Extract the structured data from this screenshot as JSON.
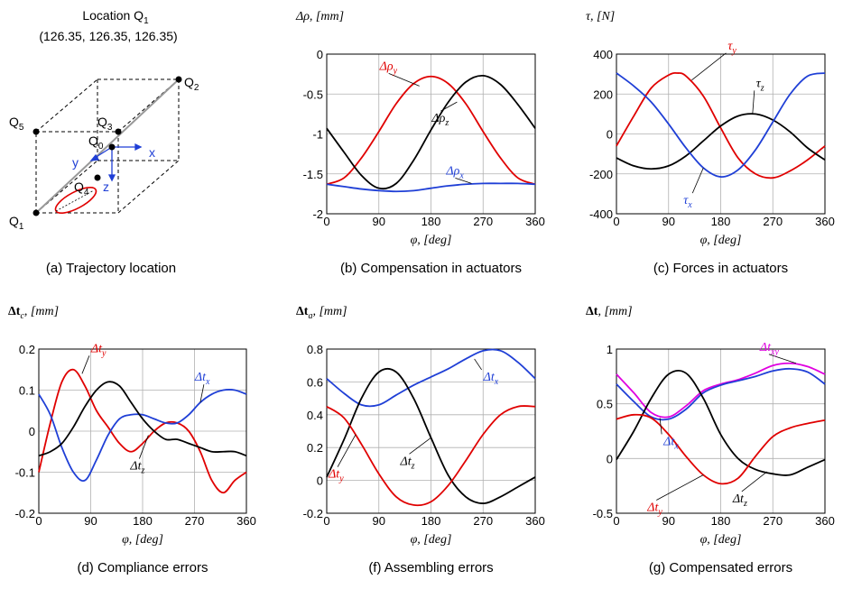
{
  "panel_a": {
    "title_line1": "Location Q",
    "title_sub": "1",
    "title_line2": "(126.35, 126.35, 126.35)",
    "caption": "(a) Trajectory location",
    "labels": {
      "Q1": {
        "t": "Q",
        "s": "1"
      },
      "Q2": {
        "t": "Q",
        "s": "2"
      },
      "Q3": {
        "t": "Q",
        "s": "3"
      },
      "Q4": {
        "t": "Q",
        "s": "4"
      },
      "Q5": {
        "t": "Q",
        "s": "5"
      },
      "Q0": {
        "t": "Q",
        "s": "0"
      }
    },
    "axes": {
      "x": "x",
      "y": "y",
      "z": "z"
    },
    "colors": {
      "axes": "#1f3fd6",
      "trajectory": "#e00000",
      "diagonal": "#999999"
    }
  },
  "chart_data": [
    {
      "id": "b",
      "type": "line",
      "caption": "(b) Compensation in actuators",
      "ylabel": "Δρ, [mm]",
      "xlabel": "φ, [deg]",
      "xlim": [
        0,
        360
      ],
      "ylim": [
        -2,
        0
      ],
      "xticks": [
        0,
        90,
        180,
        270,
        360
      ],
      "yticks": [
        -2,
        -1.5,
        -1,
        -0.5,
        0
      ],
      "ytick_labels": [
        "-2",
        "-1.5",
        "-1",
        "-0.5",
        "0"
      ],
      "grid": true,
      "series": [
        {
          "name": "Δρy",
          "color": "#e00000",
          "x": [
            0,
            30,
            60,
            90,
            120,
            150,
            180,
            210,
            240,
            270,
            300,
            330,
            360
          ],
          "y": [
            -1.63,
            -1.55,
            -1.3,
            -0.97,
            -0.62,
            -0.37,
            -0.28,
            -0.37,
            -0.62,
            -0.97,
            -1.3,
            -1.55,
            -1.63
          ]
        },
        {
          "name": "Δρz",
          "color": "#000000",
          "x": [
            0,
            30,
            60,
            90,
            120,
            150,
            180,
            210,
            240,
            270,
            300,
            330,
            360
          ],
          "y": [
            -0.93,
            -1.23,
            -1.52,
            -1.68,
            -1.62,
            -1.33,
            -0.95,
            -0.6,
            -0.35,
            -0.27,
            -0.38,
            -0.63,
            -0.93
          ]
        },
        {
          "name": "Δρx",
          "color": "#1f3fd6",
          "x": [
            0,
            30,
            60,
            90,
            120,
            150,
            180,
            210,
            240,
            270,
            300,
            330,
            360
          ],
          "y": [
            -1.63,
            -1.66,
            -1.69,
            -1.71,
            -1.72,
            -1.71,
            -1.68,
            -1.65,
            -1.63,
            -1.62,
            -1.62,
            -1.62,
            -1.63
          ]
        }
      ],
      "annotations": [
        {
          "series": 0,
          "base": "Δρ",
          "sub": "y"
        },
        {
          "series": 1,
          "base": "Δρ",
          "sub": "z"
        },
        {
          "series": 2,
          "base": "Δρ",
          "sub": "x"
        }
      ]
    },
    {
      "id": "c",
      "type": "line",
      "caption": "(c) Forces in actuators",
      "ylabel": "τ, [N]",
      "xlabel": "φ, [deg]",
      "xlim": [
        0,
        360
      ],
      "ylim": [
        -400,
        400
      ],
      "xticks": [
        0,
        90,
        180,
        270,
        360
      ],
      "yticks": [
        -400,
        -200,
        0,
        200,
        400
      ],
      "ytick_labels": [
        "-400",
        "-200",
        "0",
        "200",
        "400"
      ],
      "grid": true,
      "series": [
        {
          "name": "τy",
          "color": "#e00000",
          "x": [
            0,
            30,
            60,
            90,
            105,
            120,
            150,
            180,
            210,
            240,
            270,
            300,
            330,
            360
          ],
          "y": [
            -60,
            90,
            230,
            295,
            305,
            290,
            190,
            30,
            -120,
            -200,
            -220,
            -185,
            -130,
            -60
          ]
        },
        {
          "name": "τz",
          "color": "#000000",
          "x": [
            0,
            30,
            60,
            90,
            120,
            150,
            180,
            210,
            240,
            270,
            300,
            330,
            360
          ],
          "y": [
            -120,
            -160,
            -175,
            -160,
            -110,
            -35,
            40,
            90,
            100,
            70,
            10,
            -70,
            -130
          ]
        },
        {
          "name": "τx",
          "color": "#1f3fd6",
          "x": [
            0,
            30,
            60,
            90,
            120,
            150,
            180,
            210,
            240,
            270,
            300,
            330,
            360
          ],
          "y": [
            305,
            240,
            160,
            50,
            -70,
            -170,
            -215,
            -180,
            -80,
            60,
            200,
            290,
            305
          ]
        }
      ],
      "annotations": [
        {
          "series": 0,
          "base": "τ",
          "sub": "y"
        },
        {
          "series": 1,
          "base": "τ",
          "sub": "z"
        },
        {
          "series": 2,
          "base": "τ",
          "sub": "x"
        }
      ]
    },
    {
      "id": "d",
      "type": "line",
      "caption": "(d) Compliance errors",
      "ylabel": "Δtc, [mm]",
      "xlabel": "φ, [deg]",
      "xlim": [
        0,
        360
      ],
      "ylim": [
        -0.2,
        0.2
      ],
      "xticks": [
        0,
        90,
        180,
        270,
        360
      ],
      "yticks": [
        -0.2,
        -0.1,
        0,
        0.1,
        0.2
      ],
      "ytick_labels": [
        "-0.2",
        "-0.1",
        "0",
        "0.1",
        "0.2"
      ],
      "grid": true,
      "series": [
        {
          "name": "Δty",
          "color": "#e00000",
          "x": [
            0,
            20,
            40,
            60,
            80,
            100,
            120,
            140,
            160,
            180,
            200,
            220,
            240,
            260,
            280,
            300,
            320,
            340,
            360
          ],
          "y": [
            -0.1,
            0.02,
            0.12,
            0.15,
            0.11,
            0.05,
            0.01,
            -0.03,
            -0.05,
            -0.03,
            0.0,
            0.02,
            0.02,
            0.0,
            -0.05,
            -0.12,
            -0.15,
            -0.12,
            -0.1
          ]
        },
        {
          "name": "Δtx",
          "color": "#1f3fd6",
          "x": [
            0,
            20,
            40,
            60,
            80,
            100,
            120,
            140,
            160,
            180,
            200,
            220,
            240,
            260,
            280,
            300,
            320,
            340,
            360
          ],
          "y": [
            0.09,
            0.04,
            -0.04,
            -0.1,
            -0.12,
            -0.07,
            -0.01,
            0.03,
            0.04,
            0.04,
            0.03,
            0.02,
            0.02,
            0.04,
            0.07,
            0.09,
            0.1,
            0.1,
            0.09
          ]
        },
        {
          "name": "Δtz",
          "color": "#000000",
          "x": [
            0,
            20,
            40,
            60,
            80,
            100,
            120,
            140,
            160,
            180,
            200,
            220,
            240,
            260,
            280,
            300,
            320,
            340,
            360
          ],
          "y": [
            -0.06,
            -0.05,
            -0.03,
            0.01,
            0.06,
            0.1,
            0.12,
            0.11,
            0.07,
            0.03,
            0.0,
            -0.02,
            -0.02,
            -0.03,
            -0.04,
            -0.05,
            -0.05,
            -0.05,
            -0.06
          ]
        }
      ],
      "annotations": [
        {
          "series": 0,
          "base": "Δt",
          "sub": "y"
        },
        {
          "series": 1,
          "base": "Δt",
          "sub": "x"
        },
        {
          "series": 2,
          "base": "Δt",
          "sub": "z"
        }
      ]
    },
    {
      "id": "f",
      "type": "line",
      "caption": "(f) Assembling errors",
      "ylabel": "Δta, [mm]",
      "xlabel": "φ, [deg]",
      "xlim": [
        0,
        360
      ],
      "ylim": [
        -0.2,
        0.8
      ],
      "xticks": [
        0,
        90,
        180,
        270,
        360
      ],
      "yticks": [
        -0.2,
        0,
        0.2,
        0.4,
        0.6,
        0.8
      ],
      "ytick_labels": [
        "-0.2",
        "0",
        "0.2",
        "0.4",
        "0.6",
        "0.8"
      ],
      "grid": true,
      "series": [
        {
          "name": "Δtx",
          "color": "#1f3fd6",
          "x": [
            0,
            30,
            60,
            90,
            120,
            150,
            180,
            210,
            240,
            270,
            300,
            330,
            360
          ],
          "y": [
            0.62,
            0.53,
            0.46,
            0.46,
            0.52,
            0.58,
            0.63,
            0.68,
            0.74,
            0.79,
            0.79,
            0.72,
            0.62
          ]
        },
        {
          "name": "Δtz",
          "color": "#000000",
          "x": [
            0,
            30,
            60,
            90,
            120,
            150,
            180,
            210,
            240,
            270,
            300,
            330,
            360
          ],
          "y": [
            0.02,
            0.25,
            0.5,
            0.66,
            0.66,
            0.5,
            0.26,
            0.03,
            -0.1,
            -0.14,
            -0.1,
            -0.04,
            0.02
          ]
        },
        {
          "name": "Δty",
          "color": "#e00000",
          "x": [
            0,
            30,
            60,
            90,
            120,
            150,
            180,
            210,
            240,
            270,
            300,
            330,
            360
          ],
          "y": [
            0.45,
            0.38,
            0.22,
            0.04,
            -0.1,
            -0.15,
            -0.13,
            -0.03,
            0.12,
            0.28,
            0.4,
            0.45,
            0.45
          ]
        }
      ],
      "annotations": [
        {
          "series": 0,
          "base": "Δt",
          "sub": "x"
        },
        {
          "series": 1,
          "base": "Δt",
          "sub": "z"
        },
        {
          "series": 2,
          "base": "Δt",
          "sub": "y"
        }
      ]
    },
    {
      "id": "g",
      "type": "line",
      "caption": "(g) Compensated errors",
      "ylabel": "Δt, [mm]",
      "xlabel": "φ, [deg]",
      "xlim": [
        0,
        360
      ],
      "ylim": [
        -0.5,
        1
      ],
      "xticks": [
        0,
        90,
        180,
        270,
        360
      ],
      "yticks": [
        -0.5,
        0,
        0.5,
        1
      ],
      "ytick_labels": [
        "-0.5",
        "0",
        "0.5",
        "1"
      ],
      "grid": true,
      "series": [
        {
          "name": "Δtxy",
          "color": "#e000e0",
          "x": [
            0,
            30,
            60,
            90,
            120,
            150,
            180,
            210,
            240,
            270,
            300,
            330,
            360
          ],
          "y": [
            0.77,
            0.6,
            0.42,
            0.38,
            0.48,
            0.62,
            0.68,
            0.72,
            0.78,
            0.85,
            0.87,
            0.84,
            0.77
          ]
        },
        {
          "name": "Δtx",
          "color": "#1f3fd6",
          "x": [
            0,
            30,
            60,
            90,
            120,
            150,
            180,
            210,
            240,
            270,
            300,
            330,
            360
          ],
          "y": [
            0.68,
            0.52,
            0.38,
            0.36,
            0.45,
            0.6,
            0.67,
            0.71,
            0.75,
            0.8,
            0.82,
            0.79,
            0.68
          ]
        },
        {
          "name": "Δtz",
          "color": "#000000",
          "x": [
            0,
            30,
            60,
            90,
            120,
            150,
            180,
            210,
            240,
            270,
            300,
            330,
            360
          ],
          "y": [
            -0.01,
            0.25,
            0.55,
            0.77,
            0.78,
            0.55,
            0.22,
            0.0,
            -0.1,
            -0.14,
            -0.15,
            -0.08,
            -0.01
          ]
        },
        {
          "name": "Δty",
          "color": "#e00000",
          "x": [
            0,
            30,
            60,
            90,
            120,
            150,
            180,
            210,
            240,
            270,
            300,
            330,
            360
          ],
          "y": [
            0.36,
            0.4,
            0.37,
            0.22,
            0.02,
            -0.15,
            -0.23,
            -0.18,
            0.02,
            0.2,
            0.28,
            0.32,
            0.35
          ]
        }
      ],
      "annotations": [
        {
          "series": 0,
          "base": "Δt",
          "sub": "xy"
        },
        {
          "series": 1,
          "base": "Δt",
          "sub": "x"
        },
        {
          "series": 2,
          "base": "Δt",
          "sub": "z"
        },
        {
          "series": 3,
          "base": "Δt",
          "sub": "y"
        }
      ]
    }
  ]
}
